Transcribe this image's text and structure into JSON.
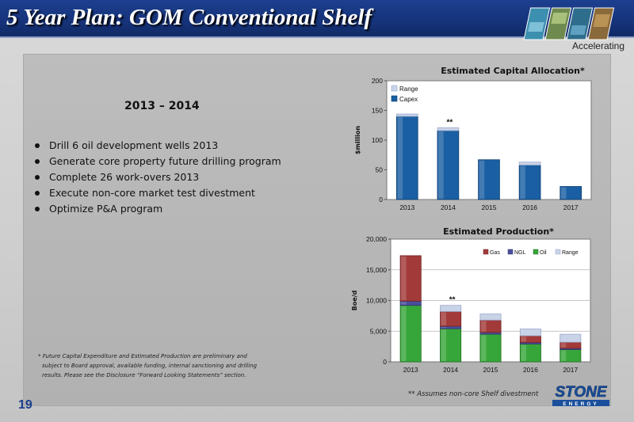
{
  "header": {
    "title": "5 Year Plan:  GOM Conventional Shelf",
    "tagline": "Accelerating"
  },
  "content": {
    "subtitle": "2013 – 2014",
    "bullets": [
      "Drill 6 oil development wells 2013",
      "Generate core property future drilling program",
      "Complete 26 work-overs 2013",
      "Execute non-core market test divestment",
      "Optimize P&A program"
    ],
    "footnote_lines": [
      "* Future Capital Expenditure and Estimated Production are preliminary and",
      "subject to Board approval, available funding, internal  sanctioning and drilling",
      "results.  Please see the Disclosure “Forward Looking Statements” section."
    ],
    "footnote2": "** Assumes non-core Shelf divestment",
    "page_number": "19"
  },
  "logo": {
    "word": "STONE",
    "sub": "ENERGY"
  },
  "colors": {
    "header_blue": "#16337a",
    "capex": "#1a5fa3",
    "range": "#c9d3e8",
    "gas": "#a33a3a",
    "ngl": "#4a4f9c",
    "oil": "#37a63a",
    "prod_range": "#c9d3e8"
  },
  "chart_data": [
    {
      "type": "bar",
      "title": "Estimated Capital Allocation*",
      "ylabel": "$million",
      "xlabel": "",
      "categories": [
        "2013",
        "2014",
        "2015",
        "2016",
        "2017"
      ],
      "yticks": [
        "0",
        "50",
        "100",
        "150",
        "200"
      ],
      "ylim": [
        0,
        200
      ],
      "series": [
        {
          "name": "Capex",
          "values": [
            140,
            116,
            67,
            58,
            22
          ]
        },
        {
          "name": "Range",
          "values": [
            4,
            5,
            0,
            5,
            0
          ]
        }
      ],
      "annotation": {
        "category": "2014",
        "text": "**"
      },
      "legend": "top-left",
      "grid": false
    },
    {
      "type": "bar",
      "stacked": true,
      "title": "Estimated Production*",
      "ylabel": "Boe/d",
      "xlabel": "",
      "categories": [
        "2013",
        "2014",
        "2015",
        "2016",
        "2017"
      ],
      "yticks": [
        "0",
        "5,000",
        "10,000",
        "15,000",
        "20,000"
      ],
      "ylim": [
        0,
        20000
      ],
      "series": [
        {
          "name": "Oil",
          "values": [
            9200,
            5400,
            4500,
            2900,
            2000
          ]
        },
        {
          "name": "NGL",
          "values": [
            700,
            400,
            300,
            250,
            200
          ]
        },
        {
          "name": "Gas",
          "values": [
            7400,
            2400,
            2000,
            1100,
            1000
          ]
        },
        {
          "name": "Range",
          "values": [
            0,
            1000,
            1000,
            1100,
            1300
          ]
        }
      ],
      "legend_order": [
        "Gas",
        "NGL",
        "Oil",
        "Range"
      ],
      "annotation": {
        "category": "2014",
        "text": "**"
      },
      "legend": "top-right",
      "grid": true
    }
  ]
}
